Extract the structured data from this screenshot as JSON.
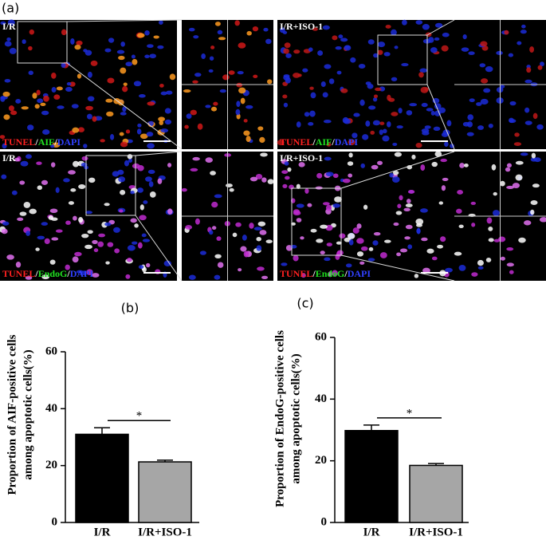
{
  "figure_label": "(a)",
  "images": [
    {
      "condition": "I/R",
      "stain": [
        "TUNEL",
        "/",
        "AIF",
        "/",
        "DAPI"
      ]
    },
    {
      "condition": "I/R+ISO-1",
      "stain": [
        "TUNEL",
        "/",
        "AIF",
        "/",
        "DAPI"
      ]
    },
    {
      "condition": "I/R",
      "stain": [
        "TUNEL",
        "/",
        "EndoG",
        "/",
        "DAPI"
      ]
    },
    {
      "condition": "I/R+ISO-1",
      "stain": [
        "TUNEL",
        "/",
        "EndoG",
        "/",
        "DAPI"
      ]
    }
  ],
  "chart_data": [
    {
      "type": "bar",
      "panel_label": "(b)",
      "ylabel": [
        "Proportion of AIF-positive cells",
        "among apoptotic cells(%)"
      ],
      "categories": [
        "I/R",
        "I/R+ISO-1"
      ],
      "values": [
        31,
        21.3
      ],
      "errors": [
        2.3,
        0.6
      ],
      "colors": [
        "#000000",
        "#a6a6a6"
      ],
      "ylim": [
        0,
        60
      ],
      "yticks": [
        0,
        20,
        40,
        60
      ],
      "annotation": "*"
    },
    {
      "type": "bar",
      "panel_label": "(c)",
      "ylabel": [
        "Proportion of EndoG-positive cells",
        "among apoptotic cells(%)"
      ],
      "categories": [
        "I/R",
        "I/R+ISO-1"
      ],
      "values": [
        29.8,
        18.5
      ],
      "errors": [
        1.8,
        0.6
      ],
      "colors": [
        "#000000",
        "#a6a6a6"
      ],
      "ylim": [
        0,
        60
      ],
      "yticks": [
        0,
        20,
        40,
        60
      ],
      "annotation": "*"
    }
  ]
}
